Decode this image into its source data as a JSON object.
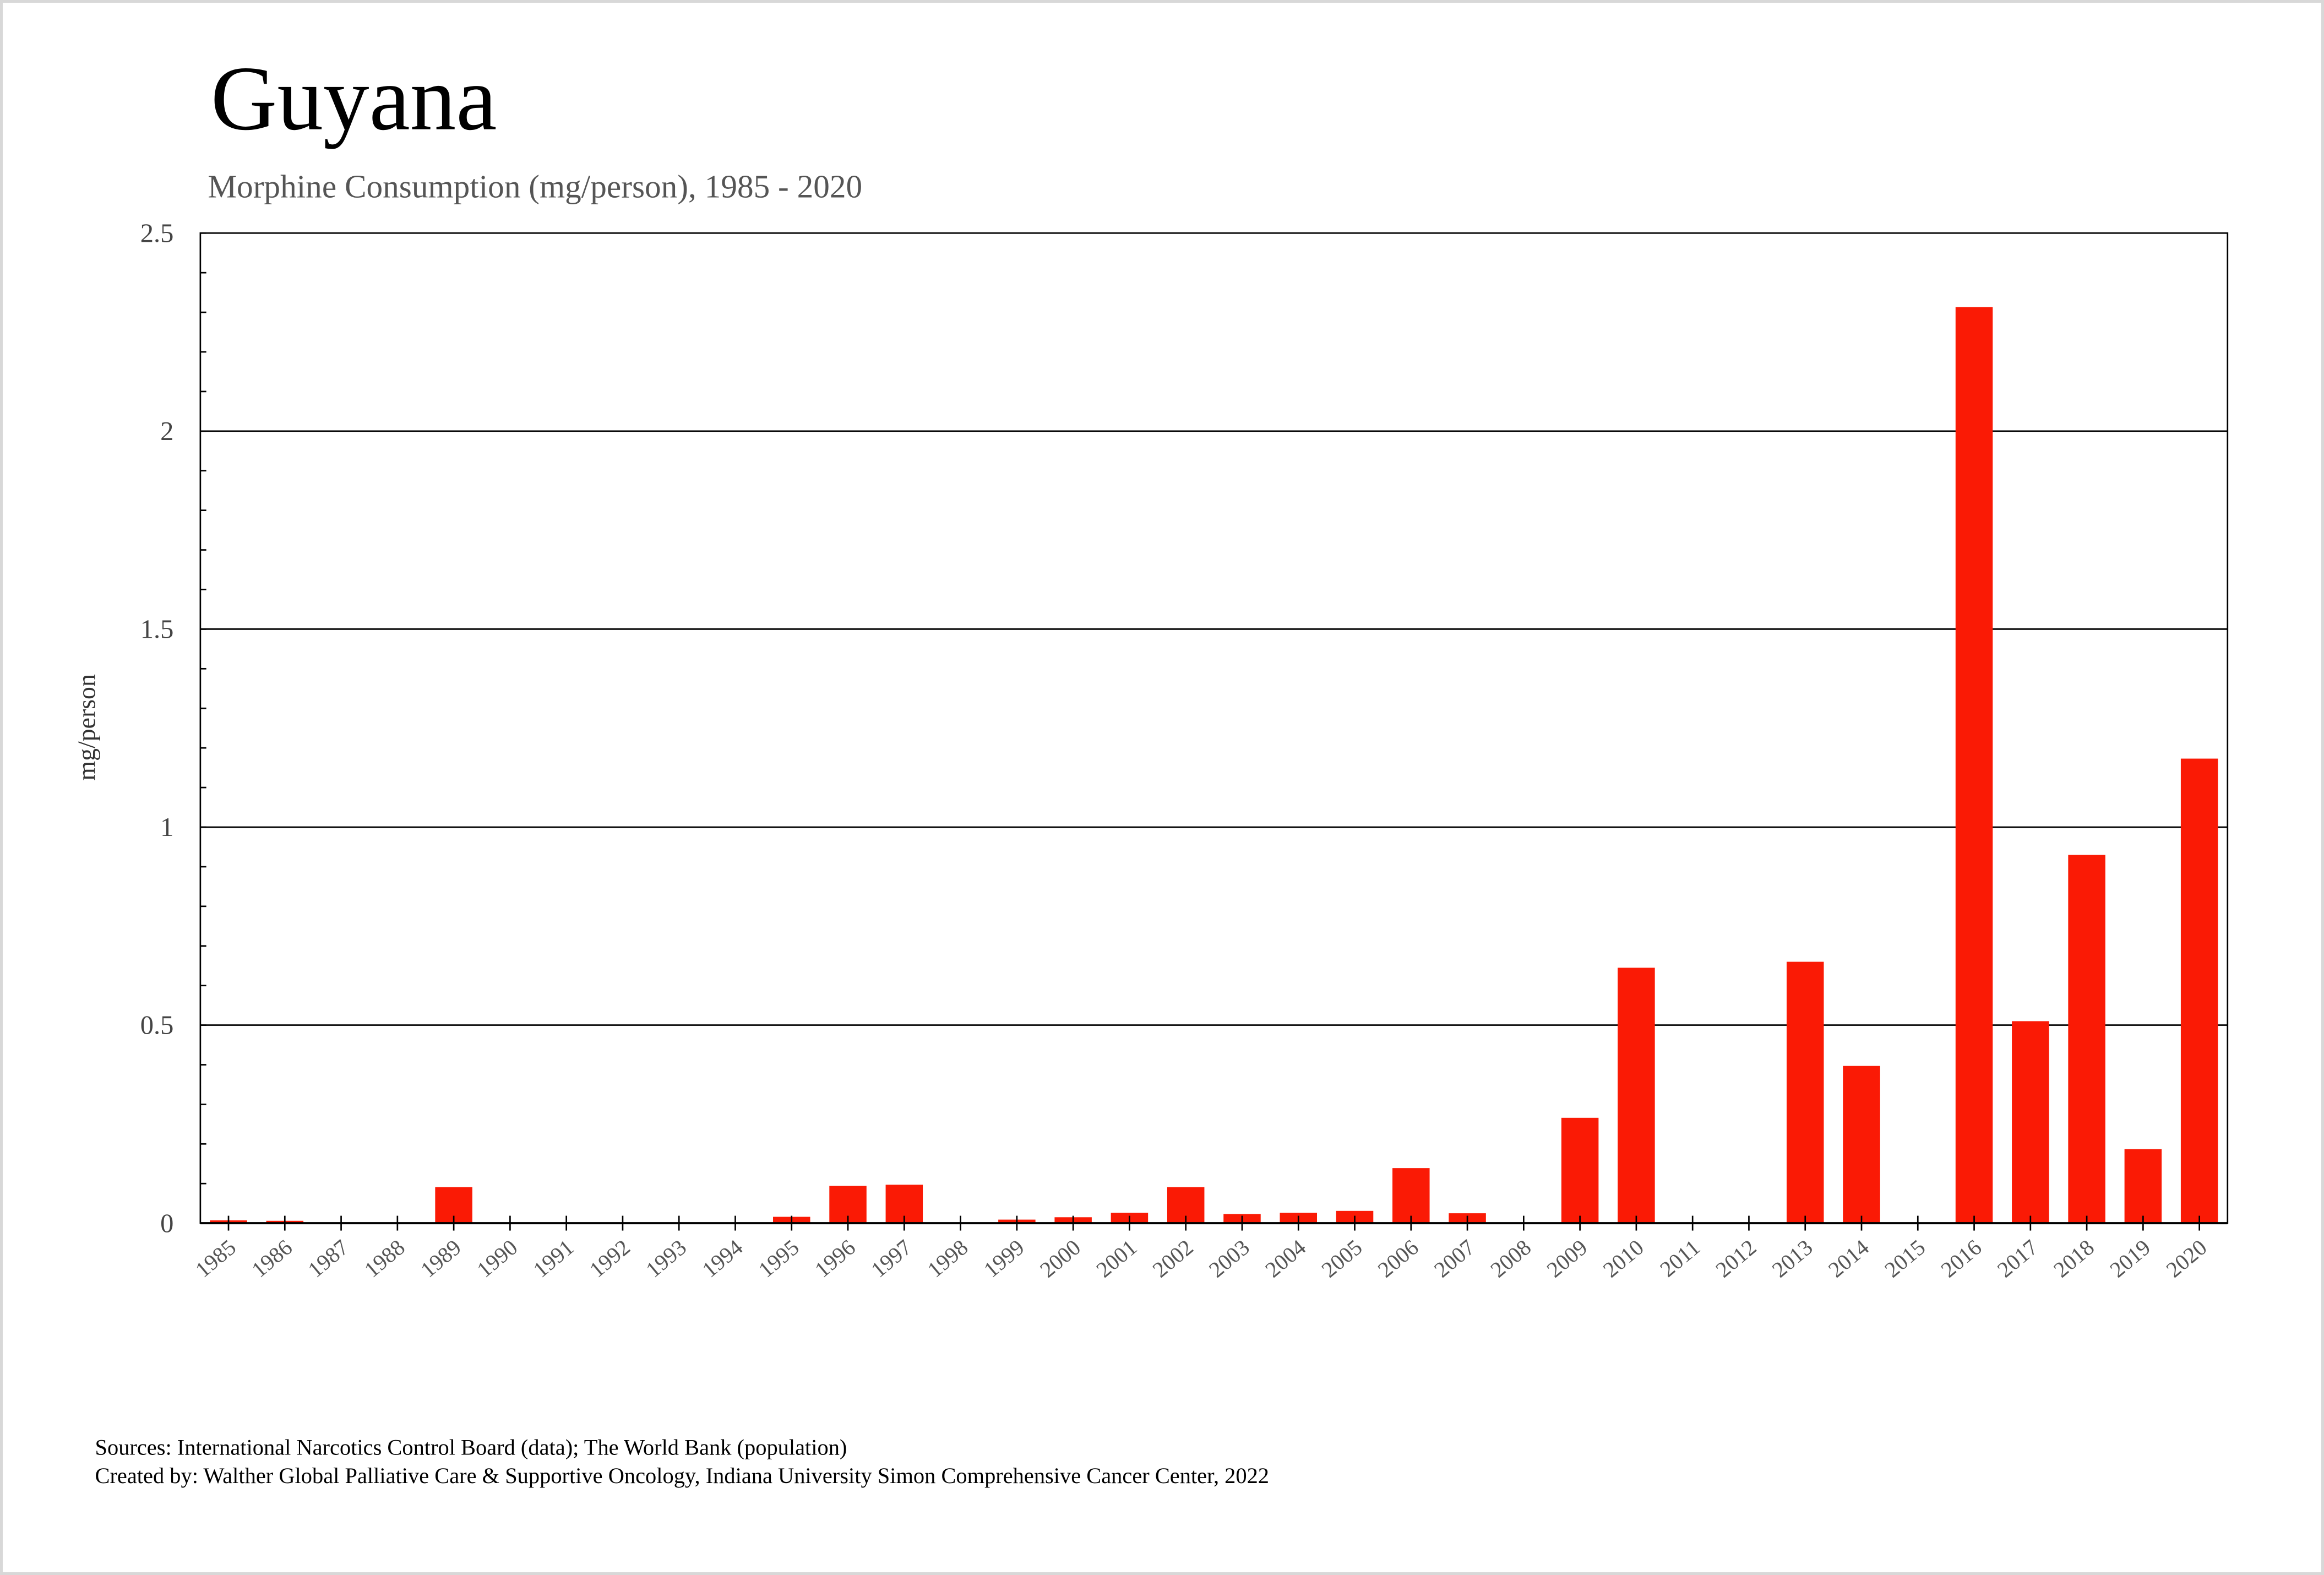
{
  "chart_data": {
    "type": "bar",
    "title": "Guyana",
    "subtitle": "Morphine Consumption (mg/person), 1985 - 2020",
    "xlabel": "",
    "ylabel": "mg/person",
    "ylim": [
      0,
      2.5
    ],
    "yticks": [
      "0",
      "0.5",
      "1",
      "1.5",
      "2",
      "2.5"
    ],
    "grid": true,
    "color": "#fa1a05",
    "categories": [
      "1985",
      "1986",
      "1987",
      "1988",
      "1989",
      "1990",
      "1991",
      "1992",
      "1993",
      "1994",
      "1995",
      "1996",
      "1997",
      "1998",
      "1999",
      "2000",
      "2001",
      "2002",
      "2003",
      "2004",
      "2005",
      "2006",
      "2007",
      "2008",
      "2009",
      "2010",
      "2011",
      "2012",
      "2013",
      "2014",
      "2015",
      "2016",
      "2017",
      "2018",
      "2019",
      "2020"
    ],
    "values": [
      0.007,
      0.006,
      0,
      0,
      0.091,
      0,
      0,
      0,
      0,
      0,
      0.016,
      0.094,
      0.097,
      0,
      0.009,
      0.015,
      0.026,
      0.091,
      0.023,
      0.026,
      0.031,
      0.139,
      0.025,
      0,
      0.266,
      0.645,
      0,
      0,
      0.66,
      0.397,
      0,
      2.313,
      0.51,
      0.93,
      0.187,
      1.173
    ]
  },
  "footer": {
    "sources": "Sources: International Narcotics Control Board (data); The World Bank (population)",
    "created": "Created by: Walther  Global Palliative Care & Supportive Oncology, Indiana University Simon Comprehensive Cancer Center, 2022"
  }
}
